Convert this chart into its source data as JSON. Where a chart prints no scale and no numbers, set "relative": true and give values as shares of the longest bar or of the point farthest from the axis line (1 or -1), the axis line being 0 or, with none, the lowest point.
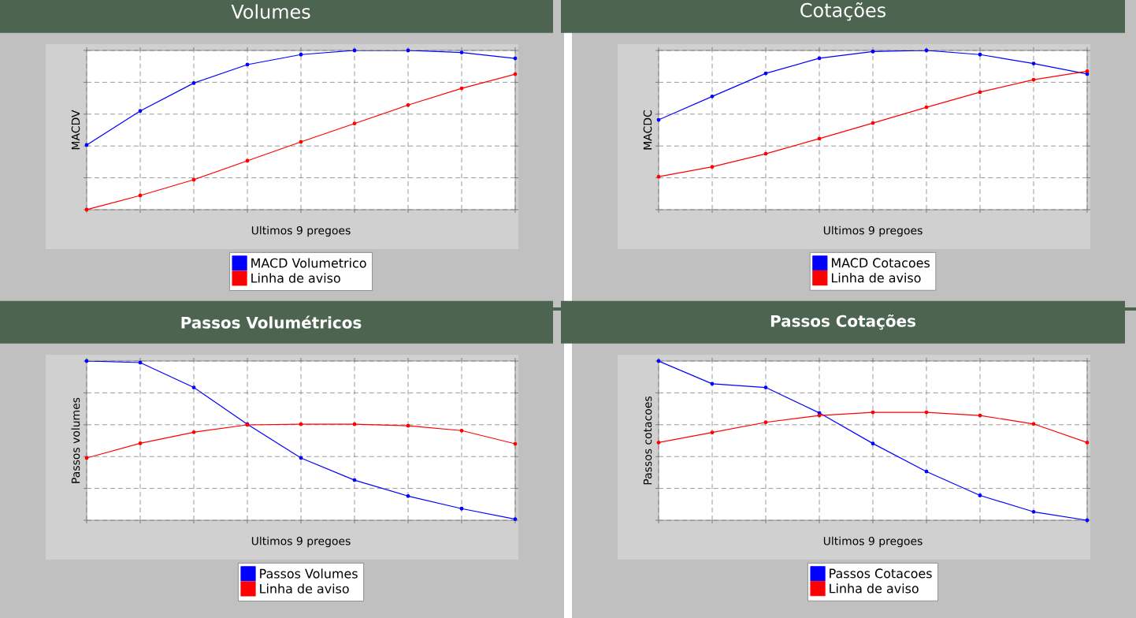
{
  "chart_data": [
    {
      "type": "line",
      "title": "Volumes",
      "xlabel": "Ultimos 9 pregoes",
      "ylabel": "MACDV",
      "relative": true,
      "categories": [
        null,
        null,
        null,
        null,
        null,
        null,
        null,
        null,
        null
      ],
      "grid": true,
      "legend": "bottom",
      "marker": "circle",
      "line_style": "solid",
      "series": [
        {
          "name": "MACD Volumetrico",
          "color": "#0000ff",
          "values": [
            0.406,
            0.62,
            0.795,
            0.911,
            0.974,
            1.0,
            1.0,
            0.987,
            0.95
          ]
        },
        {
          "name": "Linha de aviso",
          "color": "#ff0000",
          "values": [
            0.0,
            0.089,
            0.188,
            0.307,
            0.426,
            0.541,
            0.657,
            0.762,
            0.851
          ]
        }
      ]
    },
    {
      "type": "line",
      "title": "Cotações",
      "xlabel": "Ultimos 9 pregoes",
      "ylabel": "MACDC",
      "relative": true,
      "categories": [
        null,
        null,
        null,
        null,
        null,
        null,
        null,
        null,
        null
      ],
      "grid": true,
      "legend": "bottom",
      "marker": "circle",
      "line_style": "solid",
      "series": [
        {
          "name": "MACD Cotacoes",
          "color": "#0000ff",
          "values": [
            0.564,
            0.711,
            0.856,
            0.951,
            0.993,
            1.0,
            0.974,
            0.918,
            0.852
          ]
        },
        {
          "name": "Linha de aviso",
          "color": "#ff0000",
          "values": [
            0.207,
            0.269,
            0.351,
            0.446,
            0.544,
            0.643,
            0.738,
            0.816,
            0.869
          ]
        }
      ]
    },
    {
      "type": "line",
      "title": "Passos Volumétricos",
      "xlabel": "Ultimos 9 pregoes",
      "ylabel": "Passos volumes",
      "relative": true,
      "categories": [
        null,
        null,
        null,
        null,
        null,
        null,
        null,
        null,
        null
      ],
      "grid": true,
      "legend": "bottom",
      "marker": "circle",
      "line_style": "solid",
      "series": [
        {
          "name": "Passos Volumes",
          "color": "#0000ff",
          "values": [
            1.0,
            0.99,
            0.834,
            0.603,
            0.391,
            0.252,
            0.152,
            0.073,
            0.007
          ]
        },
        {
          "name": "Linha de aviso",
          "color": "#ff0000",
          "values": [
            0.391,
            0.483,
            0.553,
            0.599,
            0.603,
            0.603,
            0.593,
            0.563,
            0.48
          ]
        }
      ]
    },
    {
      "type": "line",
      "title": "Passos Cotações",
      "xlabel": "Ultimos 9 pregoes",
      "ylabel": "Passos cotacoes",
      "relative": true,
      "categories": [
        null,
        null,
        null,
        null,
        null,
        null,
        null,
        null,
        null
      ],
      "grid": true,
      "legend": "bottom",
      "marker": "circle",
      "line_style": "solid",
      "series": [
        {
          "name": "Passos Cotacoes",
          "color": "#0000ff",
          "values": [
            1.0,
            0.857,
            0.834,
            0.674,
            0.482,
            0.306,
            0.156,
            0.053,
            0.0
          ]
        },
        {
          "name": "Linha de aviso",
          "color": "#ff0000",
          "values": [
            0.488,
            0.551,
            0.615,
            0.658,
            0.678,
            0.678,
            0.658,
            0.605,
            0.488
          ]
        }
      ]
    }
  ]
}
